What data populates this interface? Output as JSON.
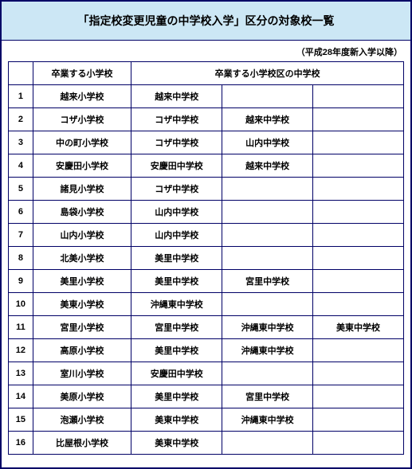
{
  "title": "「指定校変更児童の中学校入学」区分の対象校一覧",
  "subnote": "（平成28年度新入学以降）",
  "header": {
    "num": "",
    "elementary": "卒業する小学校",
    "jhs_group": "卒業する小学校区の中学校"
  },
  "rows": [
    {
      "n": "1",
      "es": "越来小学校",
      "j1": "越来中学校",
      "j2": "",
      "j3": ""
    },
    {
      "n": "2",
      "es": "コザ小学校",
      "j1": "コザ中学校",
      "j2": "越来中学校",
      "j3": ""
    },
    {
      "n": "3",
      "es": "中の町小学校",
      "j1": "コザ中学校",
      "j2": "山内中学校",
      "j3": ""
    },
    {
      "n": "4",
      "es": "安慶田小学校",
      "j1": "安慶田中学校",
      "j2": "越来中学校",
      "j3": ""
    },
    {
      "n": "5",
      "es": "諸見小学校",
      "j1": "コザ中学校",
      "j2": "",
      "j3": ""
    },
    {
      "n": "6",
      "es": "島袋小学校",
      "j1": "山内中学校",
      "j2": "",
      "j3": ""
    },
    {
      "n": "7",
      "es": "山内小学校",
      "j1": "山内中学校",
      "j2": "",
      "j3": ""
    },
    {
      "n": "8",
      "es": "北美小学校",
      "j1": "美里中学校",
      "j2": "",
      "j3": ""
    },
    {
      "n": "9",
      "es": "美里小学校",
      "j1": "美里中学校",
      "j2": "宮里中学校",
      "j3": ""
    },
    {
      "n": "10",
      "es": "美東小学校",
      "j1": "沖縄東中学校",
      "j2": "",
      "j3": ""
    },
    {
      "n": "11",
      "es": "宮里小学校",
      "j1": "宮里中学校",
      "j2": "沖縄東中学校",
      "j3": "美東中学校"
    },
    {
      "n": "12",
      "es": "高原小学校",
      "j1": "美里中学校",
      "j2": "沖縄東中学校",
      "j3": ""
    },
    {
      "n": "13",
      "es": "室川小学校",
      "j1": "安慶田中学校",
      "j2": "",
      "j3": ""
    },
    {
      "n": "14",
      "es": "美原小学校",
      "j1": "美里中学校",
      "j2": "宮里中学校",
      "j3": ""
    },
    {
      "n": "15",
      "es": "泡瀬小学校",
      "j1": "美東中学校",
      "j2": "沖縄東中学校",
      "j3": ""
    },
    {
      "n": "16",
      "es": "比屋根小学校",
      "j1": "美東中学校",
      "j2": "",
      "j3": ""
    }
  ],
  "style": {
    "border_color": "#000066",
    "title_bg": "#cce7f5",
    "font_family": "MS PGothic",
    "title_fontsize_pt": 11,
    "cell_fontsize_pt": 8.5
  }
}
